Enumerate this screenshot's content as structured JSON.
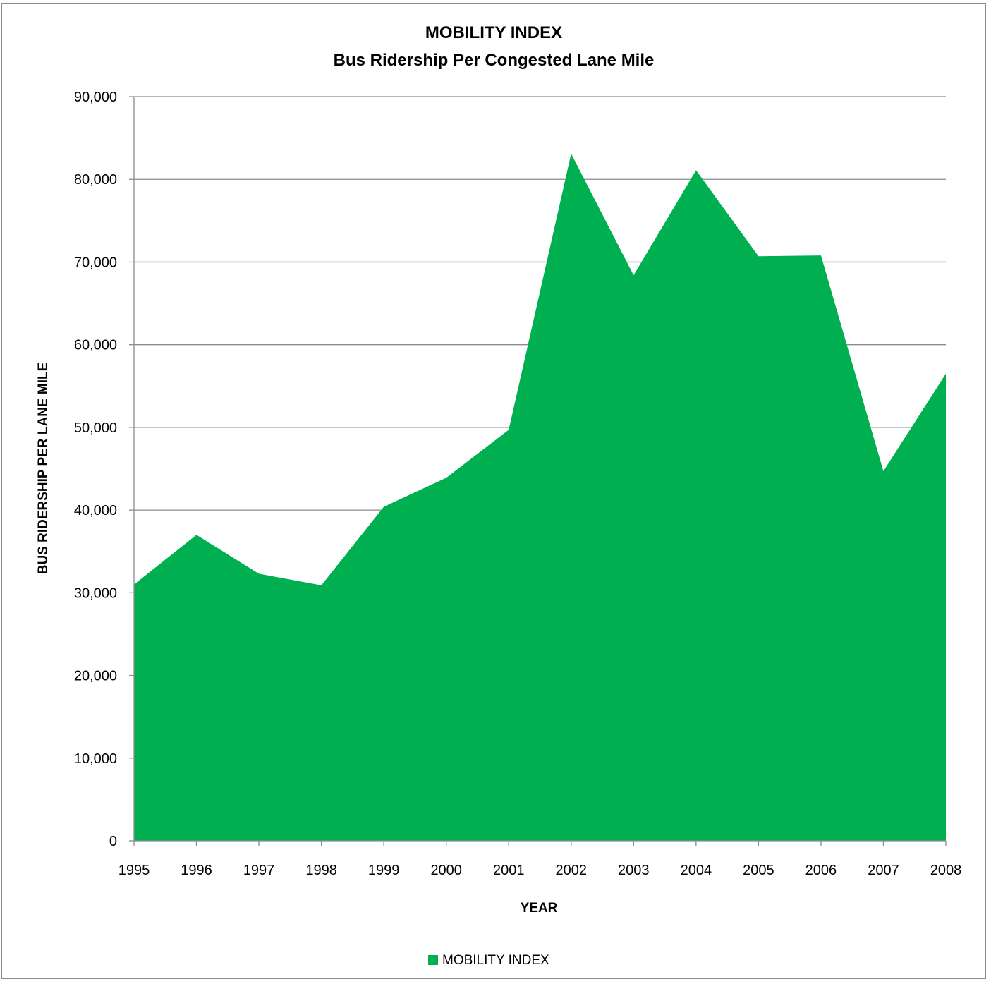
{
  "chart_data": {
    "type": "area",
    "title": "MOBILITY INDEX",
    "subtitle": "Bus Ridership Per Congested Lane Mile",
    "xlabel": "YEAR",
    "ylabel": "BUS RIDERSHIP PER LANE MILE",
    "categories": [
      "1995",
      "1996",
      "1997",
      "1998",
      "1999",
      "2000",
      "2001",
      "2002",
      "2003",
      "2004",
      "2005",
      "2006",
      "2007",
      "2008"
    ],
    "series": [
      {
        "name": "MOBILITY INDEX",
        "color": "#00b050",
        "values": [
          31000,
          37000,
          32300,
          30900,
          40400,
          43900,
          49700,
          83100,
          68400,
          81100,
          70700,
          70800,
          44700,
          56500
        ]
      }
    ],
    "ylim": [
      0,
      90000
    ],
    "yticks": [
      0,
      10000,
      20000,
      30000,
      40000,
      50000,
      60000,
      70000,
      80000,
      90000
    ],
    "ytick_labels": [
      "0",
      "10,000",
      "20,000",
      "30,000",
      "40,000",
      "50,000",
      "60,000",
      "70,000",
      "80,000",
      "90,000"
    ],
    "grid": true,
    "legend_position": "bottom-center"
  }
}
